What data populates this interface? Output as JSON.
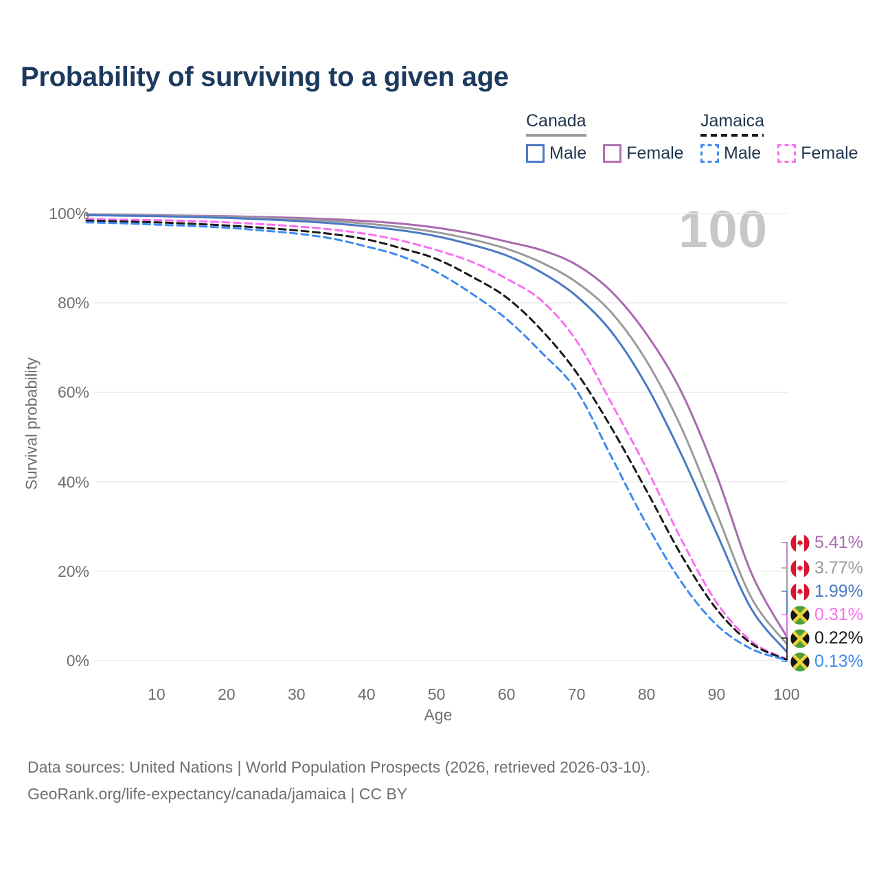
{
  "title": "Probability of surviving to a given age",
  "watermark": "100",
  "legend": {
    "groups": [
      {
        "label": "Canada",
        "line_style": "solid",
        "underline_color": "#9b9b9b",
        "items": [
          {
            "label": "Male",
            "color": "#4b79c4",
            "dash": false
          },
          {
            "label": "Female",
            "color": "#b06fb0",
            "dash": false
          }
        ]
      },
      {
        "label": "Jamaica",
        "line_style": "dashed",
        "underline_color": "#1a1a1a",
        "items": [
          {
            "label": "Male",
            "color": "#3e8bf0",
            "dash": true
          },
          {
            "label": "Female",
            "color": "#fb6ef0",
            "dash": true
          }
        ]
      }
    ]
  },
  "chart_data": {
    "type": "line",
    "title": "Probability of surviving to a given age",
    "xlabel": "Age",
    "ylabel": "Survival probability",
    "xlim": [
      0,
      100
    ],
    "ylim": [
      0,
      100
    ],
    "grid": "horizontal",
    "x_ticks": [
      10,
      20,
      30,
      40,
      50,
      60,
      70,
      80,
      90,
      100
    ],
    "y_ticks": [
      {
        "v": 0,
        "label": "0%"
      },
      {
        "v": 20,
        "label": "20%"
      },
      {
        "v": 40,
        "label": "40%"
      },
      {
        "v": 60,
        "label": "60%"
      },
      {
        "v": 80,
        "label": "80%"
      },
      {
        "v": 100,
        "label": "100%"
      }
    ],
    "ages": [
      0,
      5,
      10,
      15,
      20,
      25,
      30,
      35,
      40,
      45,
      50,
      55,
      60,
      65,
      70,
      75,
      80,
      85,
      90,
      95,
      100
    ],
    "series": [
      {
        "id": "canada-female",
        "name": "Canada Female",
        "country": "Canada",
        "sex": "Female",
        "color": "#a96ab0",
        "dash": false,
        "flag": "canada",
        "end_label": "5.41%",
        "values": [
          99.8,
          99.7,
          99.6,
          99.5,
          99.4,
          99.2,
          99.0,
          98.7,
          98.3,
          97.7,
          96.8,
          95.5,
          93.7,
          91.8,
          88.5,
          82.5,
          73.0,
          60.0,
          41.5,
          19.5,
          5.41
        ]
      },
      {
        "id": "canada-total",
        "name": "Canada Both sexes",
        "country": "Canada",
        "sex": "Both",
        "color": "#9b9b9b",
        "dash": false,
        "flag": "canada",
        "end_label": "3.77%",
        "values": [
          99.7,
          99.6,
          99.5,
          99.4,
          99.2,
          99.0,
          98.7,
          98.3,
          97.7,
          96.9,
          95.8,
          94.2,
          92.1,
          89.0,
          84.6,
          77.8,
          67.0,
          52.0,
          33.0,
          14.0,
          3.77
        ]
      },
      {
        "id": "canada-male",
        "name": "Canada Male",
        "country": "Canada",
        "sex": "Male",
        "color": "#4b79c4",
        "dash": false,
        "flag": "canada",
        "end_label": "1.99%",
        "values": [
          99.6,
          99.5,
          99.4,
          99.2,
          99.0,
          98.7,
          98.3,
          97.8,
          97.1,
          96.2,
          94.9,
          93.0,
          90.6,
          86.8,
          81.5,
          73.5,
          61.5,
          46.0,
          28.5,
          11.5,
          1.99
        ]
      },
      {
        "id": "jamaica-female",
        "name": "Jamaica Female",
        "country": "Jamaica",
        "sex": "Female",
        "color": "#fb6ef0",
        "dash": true,
        "flag": "jamaica",
        "end_label": "0.31%",
        "values": [
          98.8,
          98.6,
          98.5,
          98.3,
          98.0,
          97.6,
          97.1,
          96.4,
          95.4,
          93.9,
          91.8,
          89.2,
          85.4,
          80.5,
          71.5,
          57.5,
          43.0,
          27.0,
          13.0,
          4.3,
          0.31
        ]
      },
      {
        "id": "jamaica-total",
        "name": "Jamaica Both sexes",
        "country": "Jamaica",
        "sex": "Both",
        "color": "#1a1a1a",
        "dash": true,
        "flag": "jamaica",
        "end_label": "0.22%",
        "values": [
          98.4,
          98.2,
          98.0,
          97.7,
          97.3,
          96.8,
          96.2,
          95.4,
          94.2,
          92.2,
          89.8,
          85.9,
          81.2,
          73.9,
          64.4,
          52.0,
          38.0,
          23.5,
          11.5,
          3.8,
          0.22
        ]
      },
      {
        "id": "jamaica-male",
        "name": "Jamaica Male",
        "country": "Jamaica",
        "sex": "Male",
        "color": "#3e8bf0",
        "dash": true,
        "flag": "jamaica",
        "end_label": "0.13%",
        "values": [
          98.0,
          97.8,
          97.5,
          97.2,
          96.8,
          96.2,
          95.5,
          94.4,
          92.6,
          90.4,
          86.9,
          82.1,
          76.4,
          68.9,
          60.4,
          45.5,
          30.5,
          17.5,
          8.0,
          2.6,
          0.13
        ]
      }
    ]
  },
  "footer": {
    "line1": "Data sources: United Nations | World Population Prospects (2026, retrieved 2026-03-10).",
    "line2": "GeoRank.org/life-expectancy/canada/jamaica | CC BY"
  }
}
